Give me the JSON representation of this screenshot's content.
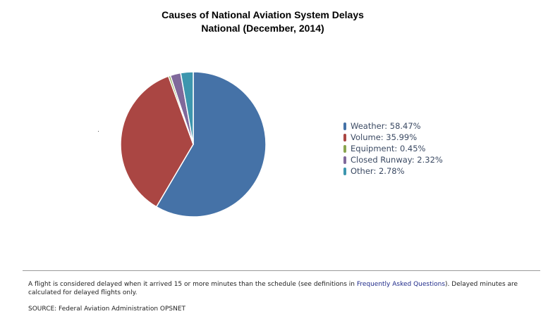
{
  "chart_data": {
    "type": "pie",
    "title": "Causes of National Aviation System Delays",
    "subtitle": "National (December, 2014)",
    "slices": [
      {
        "name": "Weather",
        "value": 58.47,
        "label": "Weather: 58.47%",
        "color": "#4572a7"
      },
      {
        "name": "Volume",
        "value": 35.99,
        "label": "Volume: 35.99%",
        "color": "#aa4643"
      },
      {
        "name": "Equipment",
        "value": 0.45,
        "label": "Equipment: 0.45%",
        "color": "#89a54e"
      },
      {
        "name": "Closed Runway",
        "value": 2.32,
        "label": "Closed Runway: 2.32%",
        "color": "#80699b"
      },
      {
        "name": "Other",
        "value": 2.78,
        "label": "Other: 2.78%",
        "color": "#3d96ae"
      }
    ],
    "legend_position": "right"
  },
  "footnote": {
    "text_before": "A flight is considered delayed when it arrived 15 or more minutes than the schedule (see definitions in ",
    "link_text": "Frequently Asked Questions",
    "text_after": "). Delayed minutes are calculated for delayed flights only."
  },
  "source": "SOURCE: Federal Aviation Administration OPSNET"
}
